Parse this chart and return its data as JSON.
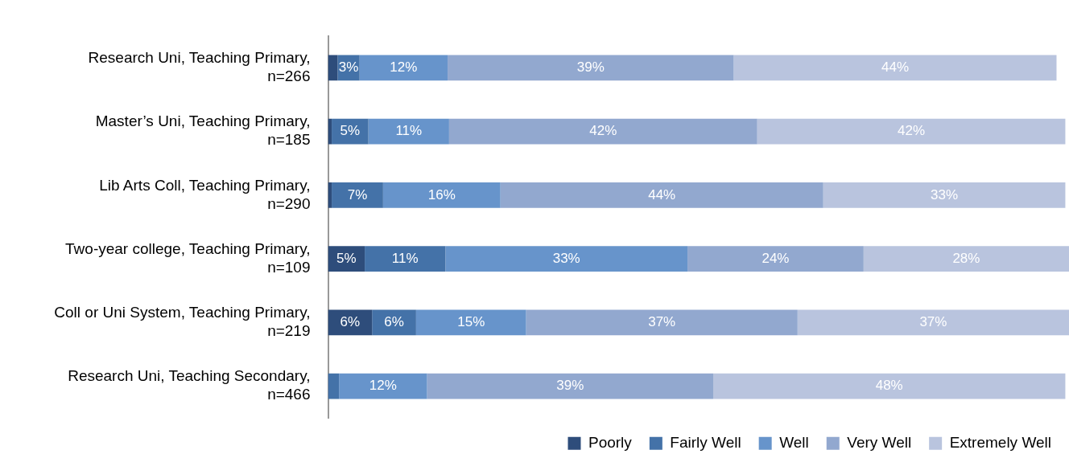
{
  "chart_data": {
    "type": "bar",
    "orientation": "horizontal",
    "stacked": true,
    "legend": "bottom",
    "tick_labels": "y",
    "categories": [
      "Research Uni, Teaching Primary, n=266",
      "Master’s Uni, Teaching Primary, n=185",
      "Lib Arts Coll, Teaching Primary, n=290",
      "Two-year college, Teaching Primary, n=109",
      "Coll or Uni System, Teaching Primary, n=219",
      "Research Uni, Teaching Secondary, n=466"
    ],
    "series": [
      {
        "name": "Poorly",
        "color": "#2e4d7b",
        "values": [
          1.3,
          0.5,
          0.5,
          5,
          6,
          0
        ],
        "value_labels": [
          null,
          null,
          null,
          "5%",
          "6%",
          null
        ]
      },
      {
        "name": "Fairly Well",
        "color": "#4472a8",
        "values": [
          3,
          5,
          7,
          11,
          6,
          1.5
        ],
        "value_labels": [
          "3%",
          "5%",
          "7%",
          "11%",
          "6%",
          null
        ]
      },
      {
        "name": "Well",
        "color": "#6794cb",
        "values": [
          12,
          11,
          16,
          33,
          15,
          12
        ],
        "value_labels": [
          "12%",
          "11%",
          "16%",
          "33%",
          "15%",
          "12%"
        ]
      },
      {
        "name": "Very Well",
        "color": "#92a8cf",
        "values": [
          39,
          42,
          44,
          24,
          37,
          39
        ],
        "value_labels": [
          "39%",
          "42%",
          "44%",
          "24%",
          "37%",
          "39%"
        ]
      },
      {
        "name": "Extremely Well",
        "color": "#b9c4de",
        "values": [
          44,
          42,
          33,
          28,
          37,
          48
        ],
        "value_labels": [
          "44%",
          "42%",
          "33%",
          "28%",
          "37%",
          "48%"
        ]
      }
    ]
  }
}
